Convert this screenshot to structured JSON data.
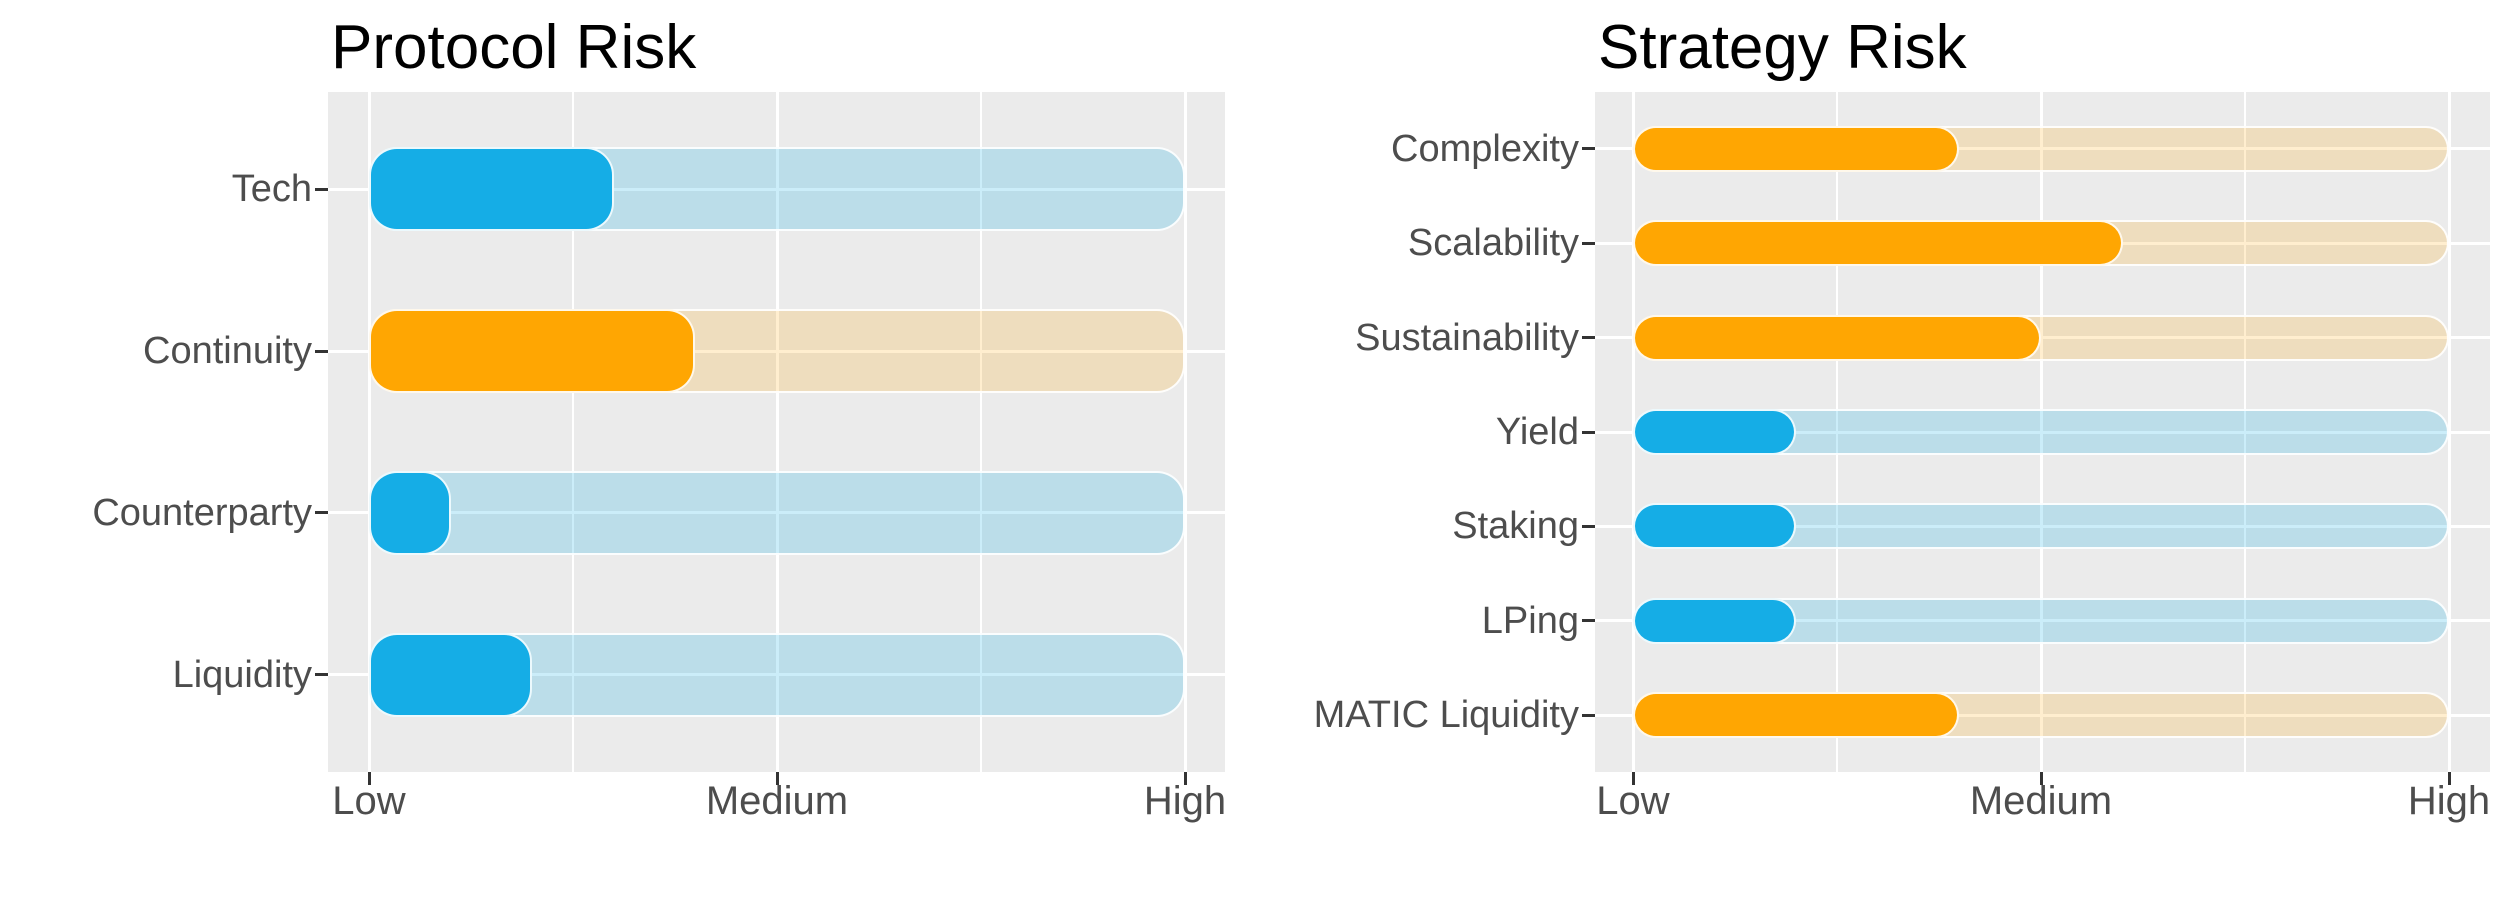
{
  "colors": {
    "blue": "#15ADE6",
    "orange": "#FFA602",
    "track_blue": "rgba(20,173,229,0.22)",
    "track_orange": "rgba(255,166,2,0.19)",
    "panel_bg": "#EBEBEB",
    "gridline": "#FFFFFF",
    "axis_text": "#4D4D4D",
    "tick_mark": "#333333",
    "title_text": "#000000"
  },
  "chart_data": [
    {
      "type": "bar",
      "orientation": "horizontal",
      "title": "Protocol Risk",
      "categories": [
        "Tech",
        "Continuity",
        "Counterparty",
        "Liquidity"
      ],
      "values": [
        1.6,
        1.8,
        1.2,
        1.4
      ],
      "bar_palette": [
        "blue",
        "orange",
        "blue",
        "blue"
      ],
      "track_range": [
        1,
        3
      ],
      "x_tick_labels": [
        "Low",
        "Medium",
        "High"
      ],
      "x_tick_values": [
        1,
        2,
        3
      ],
      "x_minor_tick_values": [
        1.5,
        2.5
      ],
      "xlim": [
        0.9,
        3.1
      ],
      "xlabel": "",
      "ylabel": "",
      "grid": "white-on-gray",
      "legend": "none"
    },
    {
      "type": "bar",
      "orientation": "horizontal",
      "title": "Strategy Risk",
      "categories": [
        "Complexity",
        "Scalability",
        "Sustainability",
        "Yield",
        "Staking",
        "LPing",
        "MATIC Liquidity"
      ],
      "values": [
        1.8,
        2.2,
        2.0,
        1.4,
        1.4,
        1.4,
        1.8
      ],
      "bar_palette": [
        "orange",
        "orange",
        "orange",
        "blue",
        "blue",
        "blue",
        "orange"
      ],
      "track_range": [
        1,
        3
      ],
      "x_tick_labels": [
        "Low",
        "Medium",
        "High"
      ],
      "x_tick_values": [
        1,
        2,
        3
      ],
      "x_minor_tick_values": [
        1.5,
        2.5
      ],
      "xlim": [
        0.9,
        3.1
      ],
      "xlabel": "",
      "ylabel": "",
      "grid": "white-on-gray",
      "legend": "none"
    }
  ]
}
